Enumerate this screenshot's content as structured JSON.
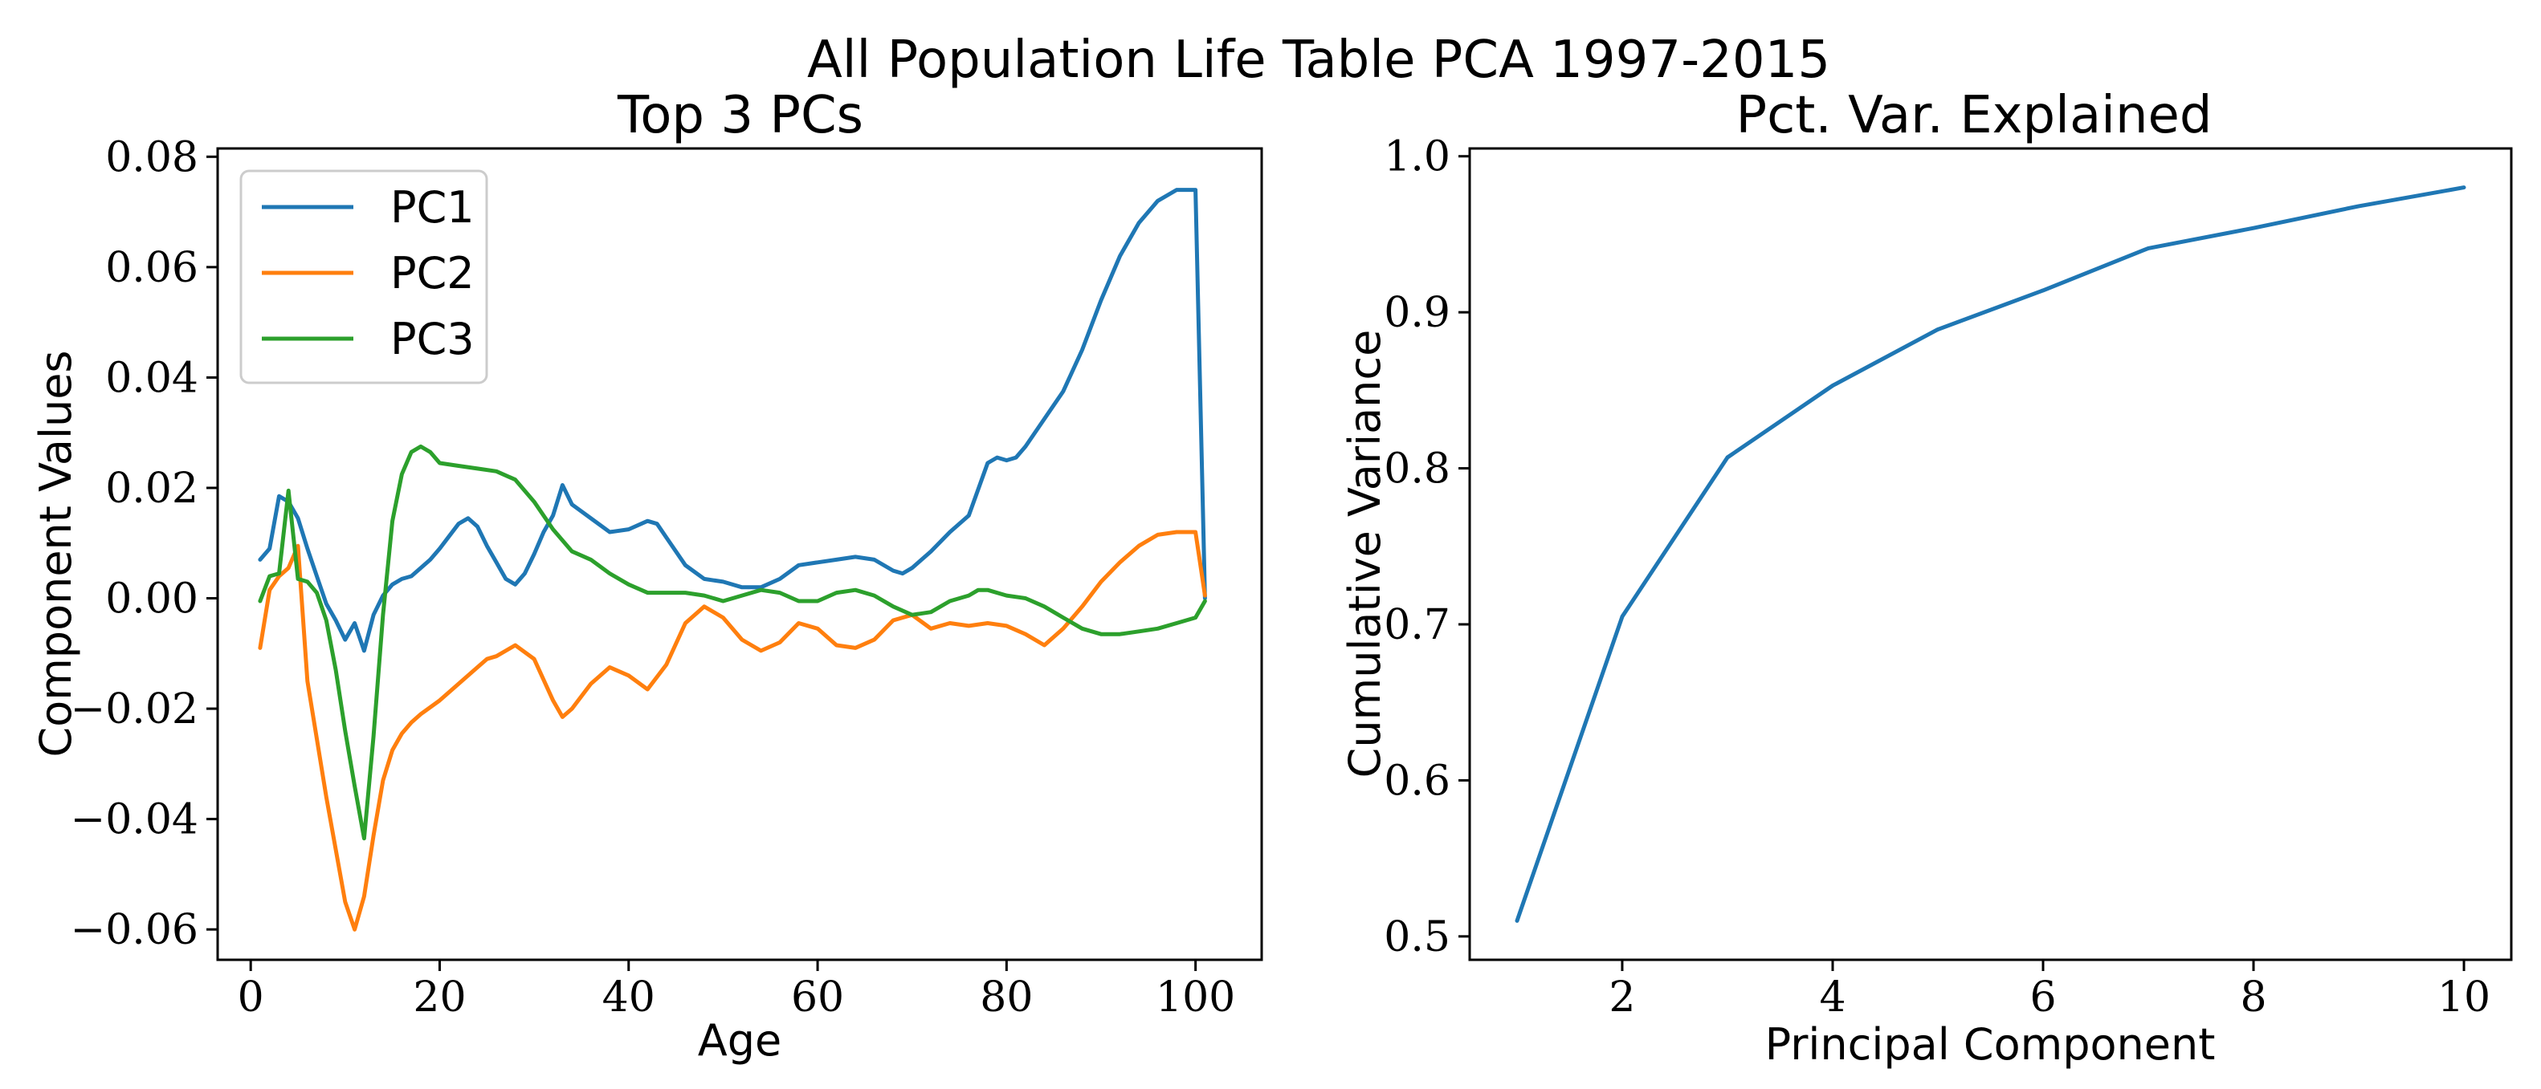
{
  "figure_title": "All Population Life Table PCA 1997-2015",
  "colors": {
    "PC1": "#1f77b4",
    "PC2": "#ff7f0e",
    "PC3": "#2ca02c"
  },
  "chart_data": [
    {
      "type": "line",
      "title": "Top 3 PCs",
      "xlabel": "Age",
      "ylabel": "Component Values",
      "xlim": [
        -3.5,
        107
      ],
      "ylim": [
        -0.0655,
        0.0815
      ],
      "xticks": [
        0,
        20,
        40,
        60,
        80,
        100
      ],
      "xtick_labels": [
        "0",
        "20",
        "40",
        "60",
        "80",
        "100"
      ],
      "yticks": [
        -0.06,
        -0.04,
        -0.02,
        0.0,
        0.02,
        0.04,
        0.06,
        0.08
      ],
      "ytick_labels": [
        "−0.06",
        "−0.04",
        "−0.02",
        "0.00",
        "0.02",
        "0.04",
        "0.06",
        "0.08"
      ],
      "legend_position": "top-left",
      "series": [
        {
          "name": "PC1",
          "x": [
            1,
            2,
            3,
            4,
            5,
            6,
            7,
            8,
            9,
            10,
            11,
            12,
            13,
            14,
            15,
            16,
            17,
            18,
            19,
            20,
            22,
            23,
            24,
            25,
            26,
            27,
            28,
            29,
            30,
            31,
            32,
            33,
            34,
            36,
            38,
            40,
            42,
            43,
            44,
            46,
            48,
            50,
            52,
            54,
            56,
            58,
            60,
            62,
            64,
            66,
            68,
            69,
            70,
            72,
            74,
            76,
            78,
            79,
            80,
            81,
            82,
            84,
            86,
            88,
            90,
            92,
            94,
            96,
            98,
            100,
            101
          ],
          "values": [
            0.007,
            0.009,
            0.0185,
            0.0175,
            0.0145,
            0.009,
            0.004,
            -0.001,
            -0.004,
            -0.0075,
            -0.0045,
            -0.0095,
            -0.003,
            0.0005,
            0.0025,
            0.0035,
            0.004,
            0.0055,
            0.007,
            0.009,
            0.0135,
            0.0145,
            0.013,
            0.0095,
            0.0065,
            0.0035,
            0.0025,
            0.0045,
            0.008,
            0.012,
            0.015,
            0.0205,
            0.017,
            0.0145,
            0.012,
            0.0125,
            0.014,
            0.0135,
            0.011,
            0.006,
            0.0035,
            0.003,
            0.002,
            0.002,
            0.0035,
            0.006,
            0.0065,
            0.007,
            0.0075,
            0.007,
            0.005,
            0.0045,
            0.0055,
            0.0085,
            0.012,
            0.015,
            0.0245,
            0.0255,
            0.025,
            0.0255,
            0.0275,
            0.0325,
            0.0375,
            0.045,
            0.054,
            0.062,
            0.068,
            0.072,
            0.074,
            0.074,
            0.0
          ]
        },
        {
          "name": "PC2",
          "x": [
            1,
            2,
            3,
            4,
            5,
            6,
            8,
            10,
            11,
            12,
            13,
            14,
            15,
            16,
            17,
            18,
            20,
            22,
            24,
            25,
            26,
            27,
            28,
            30,
            32,
            33,
            34,
            36,
            38,
            40,
            42,
            44,
            46,
            48,
            50,
            52,
            54,
            56,
            58,
            60,
            62,
            64,
            66,
            68,
            70,
            72,
            74,
            76,
            78,
            80,
            82,
            84,
            86,
            88,
            90,
            92,
            94,
            96,
            98,
            100,
            101
          ],
          "values": [
            -0.009,
            0.0015,
            0.004,
            0.0055,
            0.0095,
            -0.015,
            -0.036,
            -0.055,
            -0.06,
            -0.054,
            -0.043,
            -0.033,
            -0.0275,
            -0.0245,
            -0.0225,
            -0.021,
            -0.0185,
            -0.0155,
            -0.0125,
            -0.011,
            -0.0105,
            -0.0095,
            -0.0085,
            -0.011,
            -0.0185,
            -0.0215,
            -0.02,
            -0.0155,
            -0.0125,
            -0.014,
            -0.0165,
            -0.012,
            -0.0045,
            -0.0015,
            -0.0035,
            -0.0075,
            -0.0095,
            -0.008,
            -0.0045,
            -0.0055,
            -0.0085,
            -0.009,
            -0.0075,
            -0.004,
            -0.003,
            -0.0055,
            -0.0045,
            -0.005,
            -0.0045,
            -0.005,
            -0.0065,
            -0.0085,
            -0.0055,
            -0.0015,
            0.003,
            0.0065,
            0.0095,
            0.0115,
            0.012,
            0.012,
            0.0005
          ]
        },
        {
          "name": "PC3",
          "x": [
            1,
            2,
            3,
            4,
            5,
            6,
            7,
            8,
            9,
            10,
            11,
            12,
            13,
            14,
            15,
            16,
            17,
            18,
            19,
            20,
            22,
            24,
            26,
            28,
            30,
            32,
            34,
            36,
            38,
            40,
            42,
            44,
            46,
            48,
            50,
            52,
            54,
            56,
            58,
            60,
            62,
            64,
            66,
            68,
            70,
            72,
            74,
            76,
            77,
            78,
            80,
            82,
            84,
            86,
            88,
            90,
            92,
            94,
            96,
            98,
            100,
            101
          ],
          "values": [
            -0.0005,
            0.004,
            0.0045,
            0.0195,
            0.0035,
            0.003,
            0.001,
            -0.004,
            -0.013,
            -0.024,
            -0.034,
            -0.0435,
            -0.025,
            -0.003,
            0.014,
            0.0225,
            0.0265,
            0.0275,
            0.0265,
            0.0245,
            0.024,
            0.0235,
            0.023,
            0.0215,
            0.0175,
            0.0125,
            0.0085,
            0.007,
            0.0045,
            0.0025,
            0.001,
            0.001,
            0.001,
            0.0005,
            -0.0005,
            0.0005,
            0.0015,
            0.001,
            -0.0005,
            -0.0005,
            0.001,
            0.0015,
            0.0005,
            -0.0015,
            -0.003,
            -0.0025,
            -0.0005,
            0.0005,
            0.0015,
            0.0015,
            0.0005,
            0.0,
            -0.0015,
            -0.0035,
            -0.0055,
            -0.0065,
            -0.0065,
            -0.006,
            -0.0055,
            -0.0045,
            -0.0035,
            -0.0005
          ]
        }
      ]
    },
    {
      "type": "line",
      "title": "Pct. Var. Explained",
      "xlabel": "Principal Component",
      "ylabel": "Cumulative Variance",
      "xlim": [
        0.55,
        10.45
      ],
      "ylim": [
        0.485,
        1.005
      ],
      "xticks": [
        2,
        4,
        6,
        8,
        10
      ],
      "xtick_labels": [
        "2",
        "4",
        "6",
        "8",
        "10"
      ],
      "yticks": [
        0.5,
        0.6,
        0.7,
        0.8,
        0.9,
        1.0
      ],
      "ytick_labels": [
        "0.5",
        "0.6",
        "0.7",
        "0.8",
        "0.9",
        "1.0"
      ],
      "series": [
        {
          "name": "Cumulative Variance",
          "x": [
            1,
            2,
            3,
            4,
            5,
            6,
            7,
            8,
            9,
            10
          ],
          "values": [
            0.51,
            0.705,
            0.807,
            0.853,
            0.889,
            0.914,
            0.941,
            0.954,
            0.968,
            0.98
          ]
        }
      ]
    }
  ]
}
